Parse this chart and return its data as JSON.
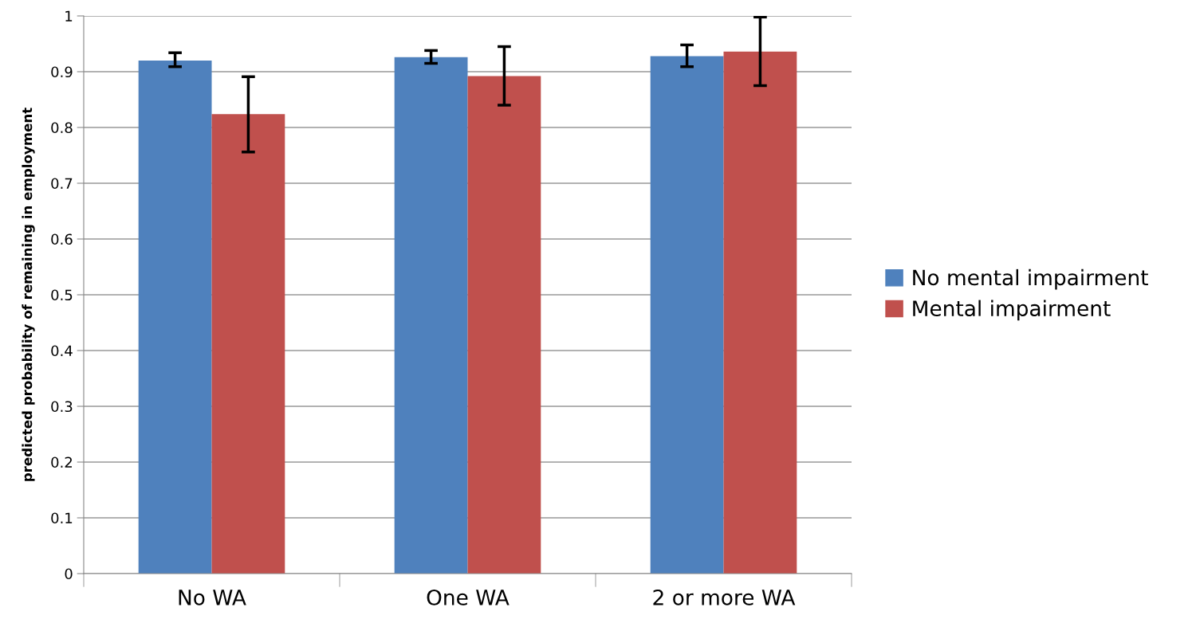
{
  "chart_data": {
    "type": "bar",
    "ylabel": "predicted probability of remaining in employment",
    "categories": [
      "No WA",
      "One WA",
      "2 or more WA"
    ],
    "series": [
      {
        "name": "No mental impairment",
        "color": "#4f81bd",
        "values": [
          0.92,
          0.926,
          0.928
        ],
        "errors": [
          [
            0.909,
            0.934
          ],
          [
            0.915,
            0.938
          ],
          [
            0.909,
            0.948
          ]
        ]
      },
      {
        "name": "Mental impairment",
        "color": "#c0504d",
        "values": [
          0.824,
          0.892,
          0.936
        ],
        "errors": [
          [
            0.756,
            0.891
          ],
          [
            0.84,
            0.945
          ],
          [
            0.875,
            0.998
          ]
        ]
      }
    ],
    "ylim": [
      0,
      1
    ],
    "yticks": [
      0,
      0.1,
      0.2,
      0.3,
      0.4,
      0.5,
      0.6,
      0.7,
      0.8,
      0.9,
      1
    ],
    "grid": "y",
    "legend": "right"
  }
}
